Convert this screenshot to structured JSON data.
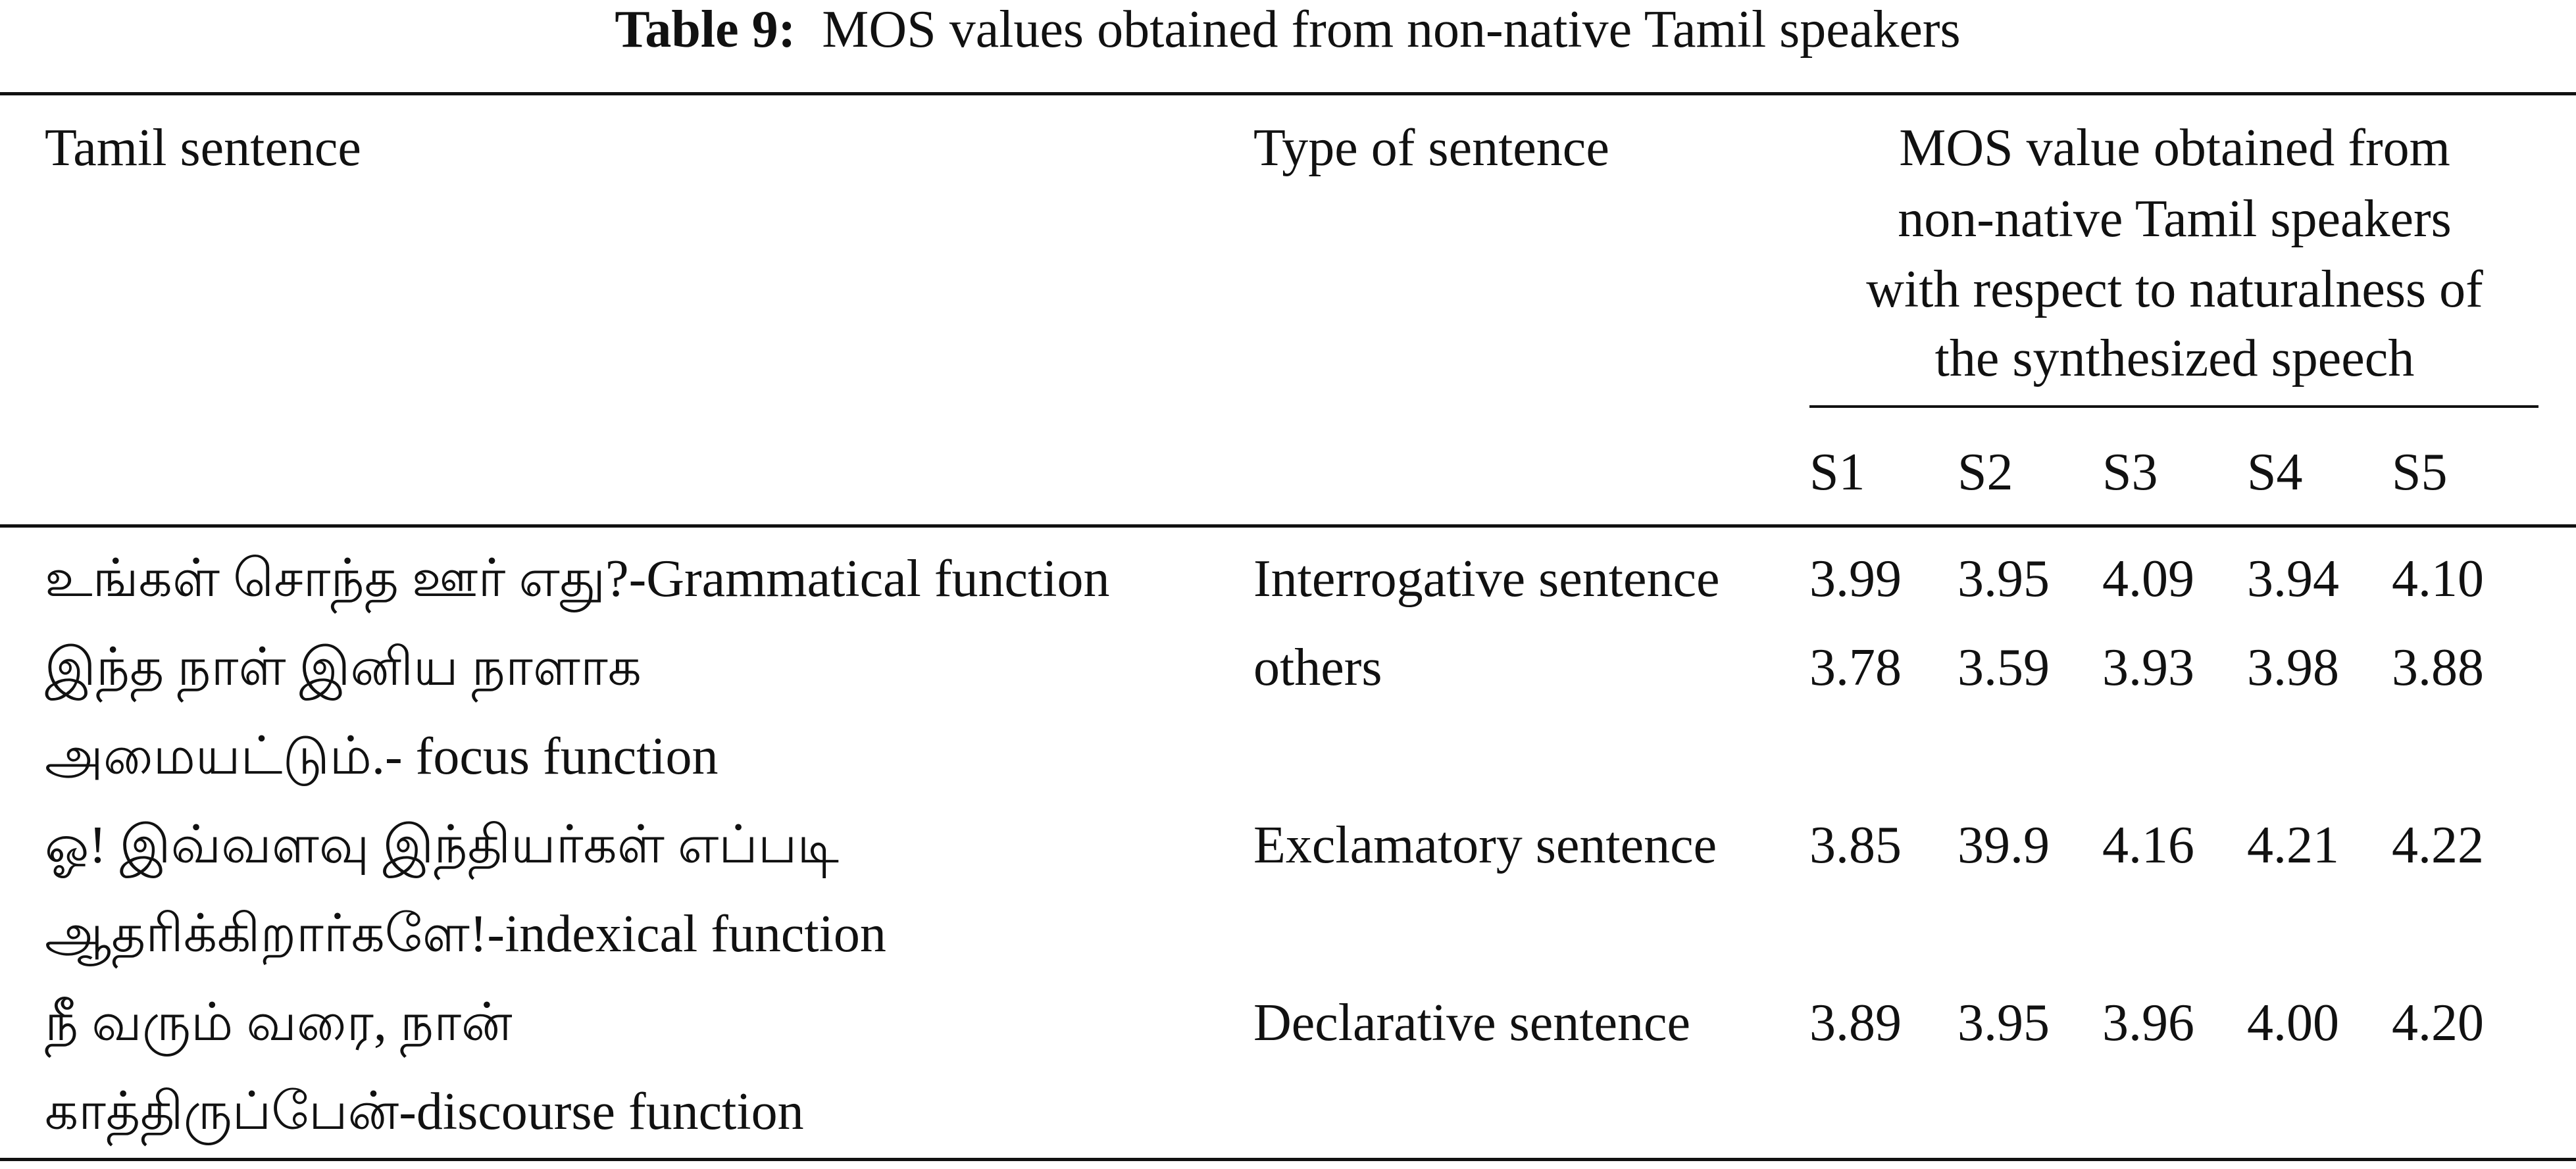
{
  "caption": {
    "label": "Table 9:",
    "text": "MOS values obtained from non-native Tamil speakers"
  },
  "table": {
    "headers": {
      "sentence": "Tamil sentence",
      "type": "Type of sentence",
      "mos_lines": [
        "MOS value obtained from",
        "non-native Tamil speakers",
        "with respect to naturalness of",
        "the synthesized speech"
      ],
      "speakers": [
        "S1",
        "S2",
        "S3",
        "S4",
        "S5"
      ]
    },
    "rows": [
      {
        "sentence_lines": [
          "உங்கள் சொந்த ஊர் எது?-Grammatical function"
        ],
        "type": "Interrogative sentence",
        "scores": [
          "3.99",
          "3.95",
          "4.09",
          "3.94",
          "4.10"
        ]
      },
      {
        "sentence_lines": [
          "இந்த நாள் இனிய நாளாக",
          "அமையட்டும்.- focus function"
        ],
        "type": "others",
        "scores": [
          "3.78",
          "3.59",
          "3.93",
          "3.98",
          "3.88"
        ]
      },
      {
        "sentence_lines": [
          "ஓ! இவ்வளவு இந்தியர்கள் எப்படி",
          "ஆதரிக்கிறார்களே!-indexical function"
        ],
        "type": "Exclamatory sentence",
        "scores": [
          "3.85",
          "39.9",
          "4.16",
          "4.21",
          "4.22"
        ]
      },
      {
        "sentence_lines": [
          "நீ வரும் வரை, நான்",
          "காத்திருப்பேன்-discourse function"
        ],
        "type": "Declarative sentence",
        "scores": [
          "3.89",
          "3.95",
          "3.96",
          "4.00",
          "4.20"
        ]
      }
    ]
  }
}
